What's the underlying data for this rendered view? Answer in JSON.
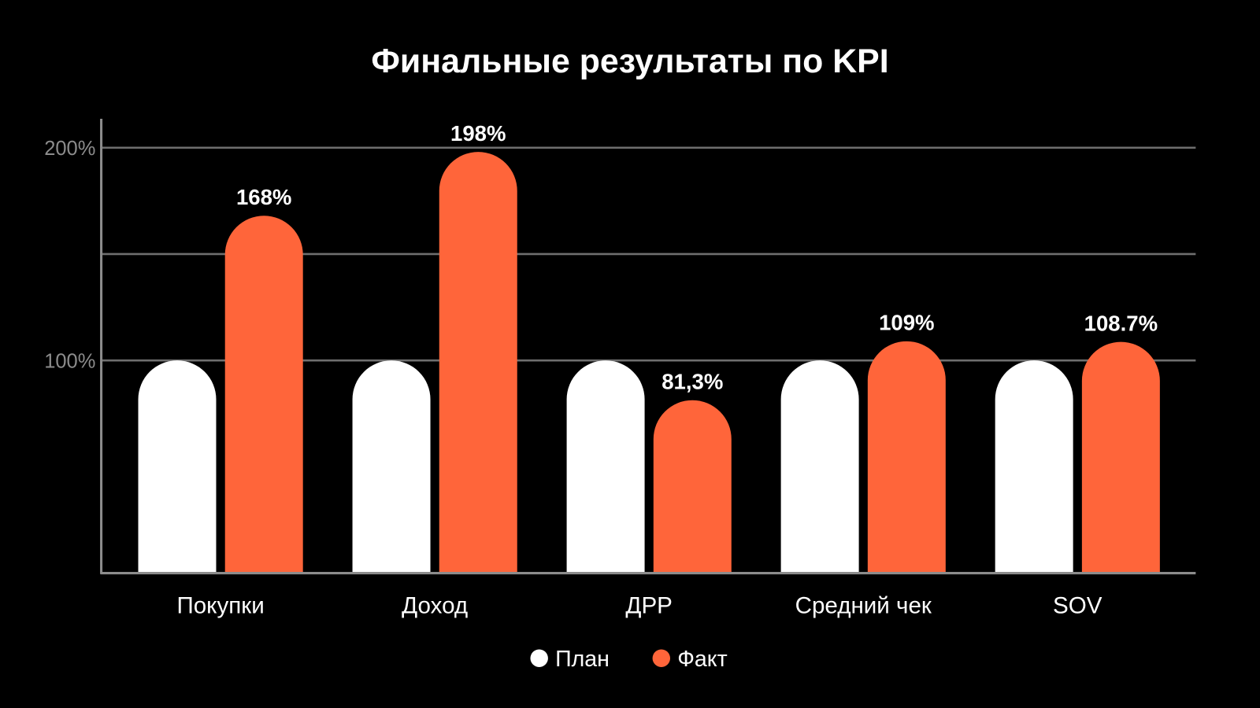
{
  "chart_data": {
    "type": "bar",
    "title": "Финальные результаты по KPI",
    "categories": [
      "Покупки",
      "Доход",
      "ДРР",
      "Средний чек",
      "SOV"
    ],
    "series": [
      {
        "name": "План",
        "color": "#ffffff",
        "values": [
          100,
          100,
          100,
          100,
          100
        ]
      },
      {
        "name": "Факт",
        "color": "#ff653a",
        "values": [
          168,
          198,
          81.3,
          109,
          108.7
        ],
        "labels": [
          "168%",
          "198%",
          "81,3%",
          "109%",
          "108.7%"
        ]
      }
    ],
    "yticks": [
      {
        "value": 100,
        "label": "100%"
      },
      {
        "value": 200,
        "label": "200%"
      }
    ],
    "gridlines": [
      100,
      150,
      200
    ],
    "ylim": [
      0,
      213
    ],
    "xlabel": "",
    "ylabel": "",
    "legend_position": "bottom-center",
    "grid": true
  }
}
